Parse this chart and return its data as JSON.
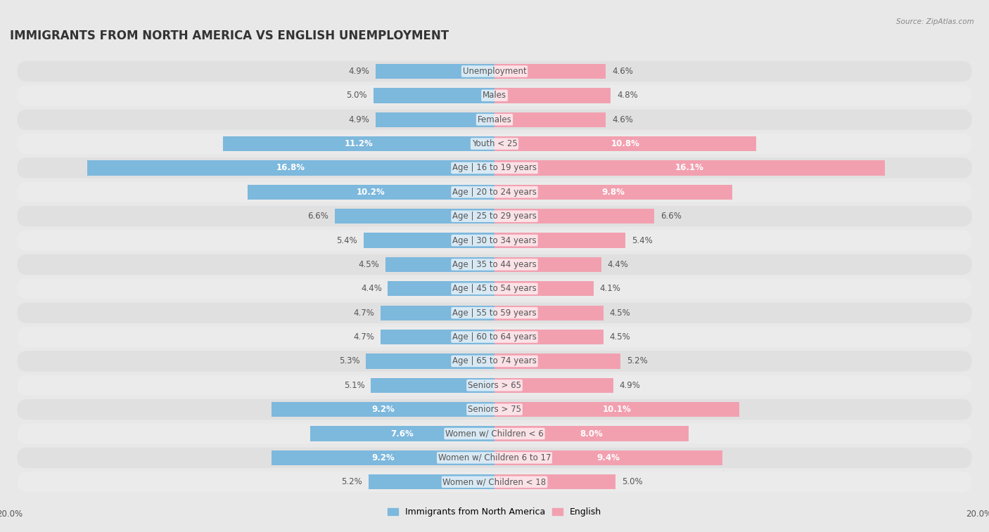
{
  "title": "IMMIGRANTS FROM NORTH AMERICA VS ENGLISH UNEMPLOYMENT",
  "source": "Source: ZipAtlas.com",
  "categories": [
    "Unemployment",
    "Males",
    "Females",
    "Youth < 25",
    "Age | 16 to 19 years",
    "Age | 20 to 24 years",
    "Age | 25 to 29 years",
    "Age | 30 to 34 years",
    "Age | 35 to 44 years",
    "Age | 45 to 54 years",
    "Age | 55 to 59 years",
    "Age | 60 to 64 years",
    "Age | 65 to 74 years",
    "Seniors > 65",
    "Seniors > 75",
    "Women w/ Children < 6",
    "Women w/ Children 6 to 17",
    "Women w/ Children < 18"
  ],
  "left_values": [
    4.9,
    5.0,
    4.9,
    11.2,
    16.8,
    10.2,
    6.6,
    5.4,
    4.5,
    4.4,
    4.7,
    4.7,
    5.3,
    5.1,
    9.2,
    7.6,
    9.2,
    5.2
  ],
  "right_values": [
    4.6,
    4.8,
    4.6,
    10.8,
    16.1,
    9.8,
    6.6,
    5.4,
    4.4,
    4.1,
    4.5,
    4.5,
    5.2,
    4.9,
    10.1,
    8.0,
    9.4,
    5.0
  ],
  "left_color": "#7db8dd",
  "right_color": "#f2a0b0",
  "left_label": "Immigrants from North America",
  "right_label": "English",
  "xlim": 20.0,
  "background_color": "#e8e8e8",
  "row_color_odd": "#e0e0e0",
  "row_color_even": "#ebebeb",
  "title_fontsize": 12,
  "label_fontsize": 8.5,
  "value_fontsize": 8.5,
  "bar_height": 0.62
}
